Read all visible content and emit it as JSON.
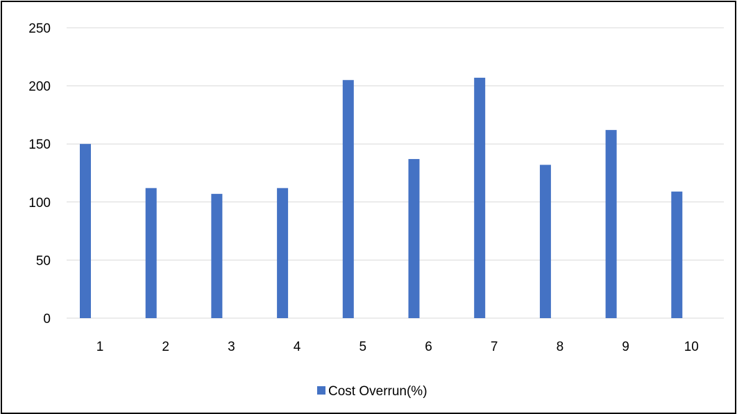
{
  "chart_data": {
    "type": "bar",
    "categories": [
      "1",
      "2",
      "3",
      "4",
      "5",
      "6",
      "7",
      "8",
      "9",
      "10"
    ],
    "series": [
      {
        "name": "Cost Overrun(%)",
        "values": [
          150,
          112,
          107,
          112,
          205,
          137,
          207,
          132,
          162,
          109
        ]
      }
    ],
    "title": "",
    "xlabel": "",
    "ylabel": "",
    "ylim": [
      0,
      250
    ],
    "yticks": [
      0,
      50,
      100,
      150,
      200,
      250
    ],
    "grid": true,
    "legend_position": "bottom",
    "bar_color": "#4472C4",
    "grid_color": "#D9D9D9"
  }
}
